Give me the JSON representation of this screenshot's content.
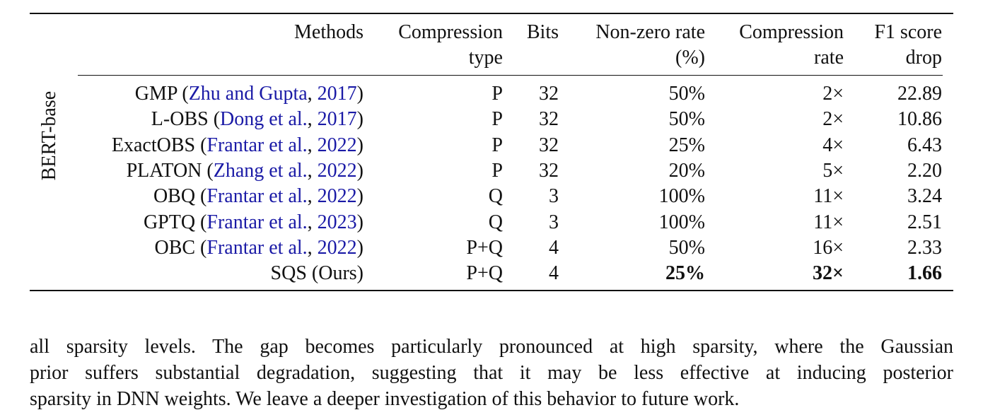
{
  "table": {
    "group_label": "BERT-base",
    "headers": [
      [
        "Methods"
      ],
      [
        "Compression",
        "type"
      ],
      [
        "Bits"
      ],
      [
        "Non-zero rate",
        "(%)"
      ],
      [
        "Compression",
        "rate"
      ],
      [
        "F1 score",
        "drop"
      ]
    ],
    "rows": [
      {
        "method": [
          {
            "text": "GMP ("
          },
          {
            "text": "Zhu and Gupta",
            "link": true
          },
          {
            "text": ", "
          },
          {
            "text": "2017",
            "link": true
          },
          {
            "text": ")"
          }
        ],
        "cells": [
          "P",
          "32",
          "50%",
          "2×",
          "22.89"
        ]
      },
      {
        "method": [
          {
            "text": "L-OBS ("
          },
          {
            "text": "Dong et al.",
            "link": true
          },
          {
            "text": ", "
          },
          {
            "text": "2017",
            "link": true
          },
          {
            "text": ")"
          }
        ],
        "cells": [
          "P",
          "32",
          "50%",
          "2×",
          "10.86"
        ]
      },
      {
        "method": [
          {
            "text": "ExactOBS ("
          },
          {
            "text": "Frantar et al.",
            "link": true
          },
          {
            "text": ", "
          },
          {
            "text": "2022",
            "link": true
          },
          {
            "text": ")"
          }
        ],
        "cells": [
          "P",
          "32",
          "25%",
          "4×",
          "6.43"
        ]
      },
      {
        "method": [
          {
            "text": "PLATON ("
          },
          {
            "text": "Zhang et al.",
            "link": true
          },
          {
            "text": ", "
          },
          {
            "text": "2022",
            "link": true
          },
          {
            "text": ")"
          }
        ],
        "cells": [
          "P",
          "32",
          "20%",
          "5×",
          "2.20"
        ]
      },
      {
        "method": [
          {
            "text": "OBQ ("
          },
          {
            "text": "Frantar et al.",
            "link": true
          },
          {
            "text": ", "
          },
          {
            "text": "2022",
            "link": true
          },
          {
            "text": ")"
          }
        ],
        "cells": [
          "Q",
          "3",
          "100%",
          "11×",
          "3.24"
        ]
      },
      {
        "method": [
          {
            "text": "GPTQ ("
          },
          {
            "text": "Frantar et al.",
            "link": true
          },
          {
            "text": ", "
          },
          {
            "text": "2023",
            "link": true
          },
          {
            "text": ")"
          }
        ],
        "cells": [
          "Q",
          "3",
          "100%",
          "11×",
          "2.51"
        ]
      },
      {
        "method": [
          {
            "text": "OBC ("
          },
          {
            "text": "Frantar et al.",
            "link": true
          },
          {
            "text": ", "
          },
          {
            "text": "2022",
            "link": true
          },
          {
            "text": ")"
          }
        ],
        "cells": [
          "P+Q",
          "4",
          "50%",
          "16×",
          "2.33"
        ]
      },
      {
        "method": [
          {
            "text": "SQS (Ours)"
          }
        ],
        "cells": [
          "P+Q",
          "4",
          "25%",
          "32×",
          "1.66"
        ],
        "bold": [
          2,
          3,
          4
        ]
      }
    ]
  },
  "paragraph": {
    "lines": [
      "all sparsity levels. The gap becomes particularly pronounced at high sparsity, where the Gaussian",
      "prior suffers substantial degradation, suggesting that it may be less effective at inducing posterior",
      "sparsity in DNN weights. We leave a deeper investigation of this behavior to future work."
    ]
  }
}
